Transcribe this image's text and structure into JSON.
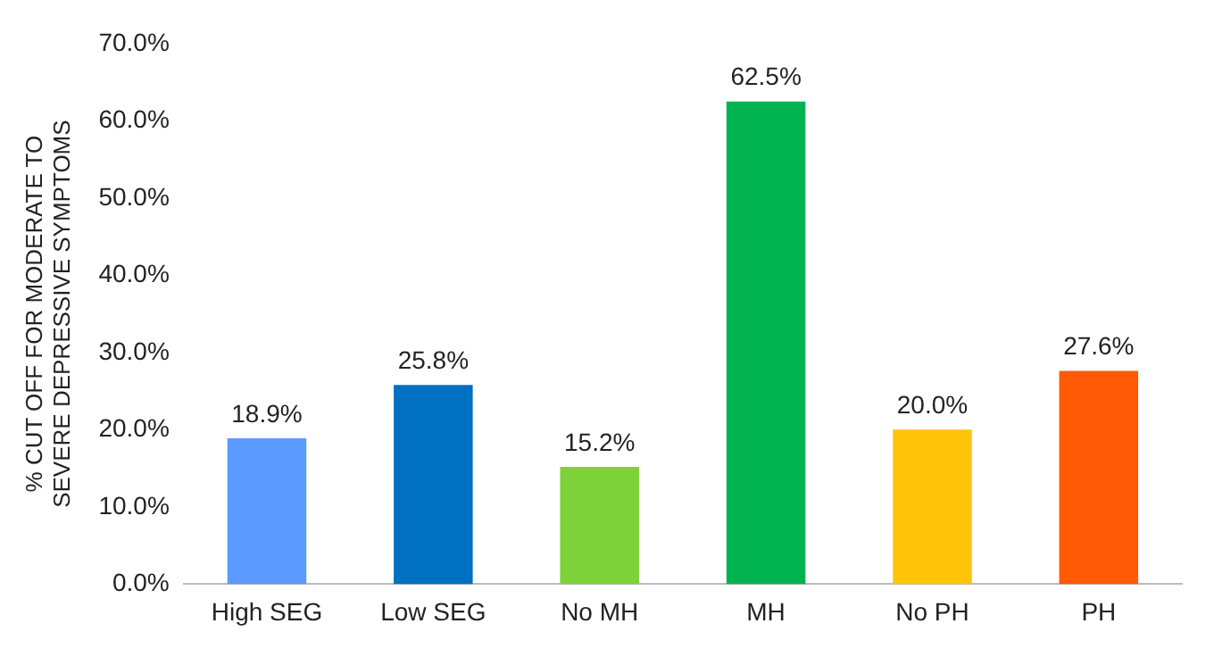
{
  "chart_data": {
    "type": "bar",
    "ylabel": "% CUT OFF FOR MODERATE TO\nSEVERE DEPRESSIVE SYMPTOMS",
    "categories": [
      "High SEG",
      "Low SEG",
      "No MH",
      "MH",
      "No PH",
      "PH"
    ],
    "values": [
      18.9,
      25.8,
      15.2,
      62.5,
      20.0,
      27.6
    ],
    "colors": [
      "#5b9bff",
      "#0070c0",
      "#7ed23a",
      "#00b34f",
      "#ffc40a",
      "#ff5a05"
    ],
    "ylim": [
      0,
      70
    ],
    "yticks": [
      {
        "value": 0,
        "label": "0.0%"
      },
      {
        "value": 10,
        "label": "10.0%"
      },
      {
        "value": 20,
        "label": "20.0%"
      },
      {
        "value": 30,
        "label": "30.0%"
      },
      {
        "value": 40,
        "label": "40.0%"
      },
      {
        "value": 50,
        "label": "50.0%"
      },
      {
        "value": 60,
        "label": "60.0%"
      },
      {
        "value": 70,
        "label": "70.0%"
      }
    ],
    "value_labels": [
      "18.9%",
      "25.8%",
      "15.2%",
      "62.5%",
      "20.0%",
      "27.6%"
    ],
    "grid": false,
    "legend": false
  }
}
